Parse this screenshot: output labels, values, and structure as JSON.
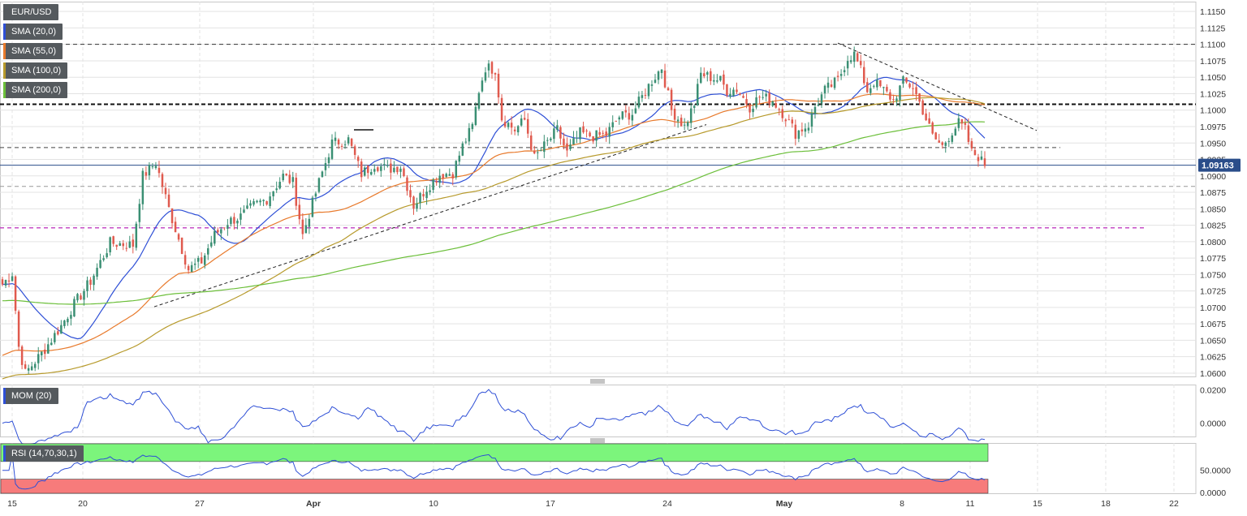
{
  "symbol": "EUR/USD",
  "last_price_label": "1.09163",
  "colors": {
    "bull": "#3a8f73",
    "bear": "#e05a4e",
    "sma20": "#2e4fd6",
    "sma55": "#e87a2c",
    "sma100": "#b79a2c",
    "sma200": "#6cbf3a",
    "mom": "#2e4fd6",
    "rsi": "#2e4fd6",
    "rsi_overbought": "#7cf57c",
    "rsi_oversold": "#f77b7b",
    "grid": "#e3e3e3",
    "support_line": "#c03ec0",
    "price_line": "#2a4d8a"
  },
  "indicators": [
    {
      "label": "SMA (20,0)",
      "color": "#2e4fd6"
    },
    {
      "label": "SMA (55,0)",
      "color": "#e87a2c"
    },
    {
      "label": "SMA (100,0)",
      "color": "#b79a2c"
    },
    {
      "label": "SMA (200,0)",
      "color": "#6cbf3a"
    }
  ],
  "mom_label": "MOM (20)",
  "rsi_label": "RSI (14,70,30,1)",
  "chart_data": [
    {
      "type": "candlestick",
      "title": "EUR/USD",
      "timeframe": "4h",
      "x_ticks": [
        "15",
        "20",
        "27",
        "Apr",
        "10",
        "17",
        "24",
        "May",
        "8",
        "11",
        "15",
        "18",
        "22"
      ],
      "y_ticks": [
        "1.1150",
        "1.1125",
        "1.1100",
        "1.1075",
        "1.1050",
        "1.1025",
        "1.1000",
        "1.0975",
        "1.0950",
        "1.0925",
        "1.0900",
        "1.0875",
        "1.0850",
        "1.0825",
        "1.0800",
        "1.0775",
        "1.0750",
        "1.0725",
        "1.0700",
        "1.0675",
        "1.0650",
        "1.0625",
        "1.0600"
      ],
      "ylim": [
        1.0595,
        1.1165
      ],
      "last_price": 1.09163,
      "horizontal_levels": [
        1.11,
        1.1009,
        1.0943,
        1.0884,
        1.0821
      ],
      "anchors": [
        [
          0,
          1.0735
        ],
        [
          3,
          1.0752
        ],
        [
          5,
          1.064
        ],
        [
          7,
          1.06
        ],
        [
          12,
          1.063
        ],
        [
          18,
          1.0672
        ],
        [
          22,
          1.0705
        ],
        [
          27,
          1.074
        ],
        [
          33,
          1.0798
        ],
        [
          40,
          1.0795
        ],
        [
          43,
          1.09
        ],
        [
          47,
          1.092
        ],
        [
          51,
          1.085
        ],
        [
          57,
          1.0758
        ],
        [
          61,
          1.077
        ],
        [
          65,
          1.081
        ],
        [
          69,
          1.083
        ],
        [
          73,
          1.0838
        ],
        [
          77,
          1.0855
        ],
        [
          81,
          1.0865
        ],
        [
          86,
          1.09
        ],
        [
          89,
          1.089
        ],
        [
          92,
          1.081
        ],
        [
          97,
          1.089
        ],
        [
          101,
          1.095
        ],
        [
          106,
          1.0955
        ],
        [
          110,
          1.0903
        ],
        [
          114,
          1.0918
        ],
        [
          118,
          1.091
        ],
        [
          122,
          1.0915
        ],
        [
          126,
          1.0855
        ],
        [
          130,
          1.0882
        ],
        [
          134,
          1.0902
        ],
        [
          138,
          1.0905
        ],
        [
          141,
          1.0945
        ],
        [
          144,
          1.0975
        ],
        [
          146,
          1.103
        ],
        [
          148,
          1.1065
        ],
        [
          151,
          1.1062
        ],
        [
          153,
          1.0988
        ],
        [
          157,
          1.097
        ],
        [
          160,
          1.0985
        ],
        [
          163,
          1.0927
        ],
        [
          166,
          1.0945
        ],
        [
          170,
          1.097
        ],
        [
          173,
          1.0935
        ],
        [
          177,
          1.0965
        ],
        [
          181,
          1.096
        ],
        [
          185,
          1.0963
        ],
        [
          189,
          1.099
        ],
        [
          193,
          1.0995
        ],
        [
          196,
          1.102
        ],
        [
          199,
          1.1045
        ],
        [
          202,
          1.1065
        ],
        [
          205,
          1.1
        ],
        [
          209,
          1.0975
        ],
        [
          212,
          1.101
        ],
        [
          214,
          1.1055
        ],
        [
          217,
          1.105
        ],
        [
          220,
          1.1045
        ],
        [
          222,
          1.103
        ],
        [
          225,
          1.1032
        ],
        [
          229,
          1.1005
        ],
        [
          232,
          1.102
        ],
        [
          236,
          1.1015
        ],
        [
          240,
          1.099
        ],
        [
          243,
          1.0965
        ],
        [
          247,
          1.0978
        ],
        [
          249,
          1.1005
        ],
        [
          252,
          1.103
        ],
        [
          256,
          1.1045
        ],
        [
          259,
          1.108
        ],
        [
          261,
          1.1085
        ],
        [
          263,
          1.106
        ],
        [
          265,
          1.103
        ],
        [
          267,
          1.1043
        ],
        [
          270,
          1.103
        ],
        [
          273,
          1.1015
        ],
        [
          276,
          1.1043
        ],
        [
          279,
          1.1035
        ],
        [
          282,
          1.1
        ],
        [
          285,
          1.096
        ],
        [
          288,
          1.0945
        ],
        [
          291,
          1.0968
        ],
        [
          293,
          1.098
        ],
        [
          295,
          1.097
        ],
        [
          297,
          1.0935
        ],
        [
          299,
          1.093
        ],
        [
          301,
          1.0915
        ]
      ],
      "candles_rendered": 302,
      "trendlines": [
        {
          "from_date": "Mar 23",
          "from": 1.0701,
          "to_date": "Apr 28",
          "to": 1.0978
        },
        {
          "from_date": "May 4",
          "from": 1.1102,
          "to_date": "May 14",
          "to": 1.0969
        }
      ],
      "series": [
        {
          "name": "SMA (20,0)",
          "period": 20
        },
        {
          "name": "SMA (55,0)",
          "period": 55
        },
        {
          "name": "SMA (100,0)",
          "period": 100
        },
        {
          "name": "SMA (200,0)",
          "period": 200
        }
      ]
    },
    {
      "type": "line",
      "title": "MOM (20)",
      "y_ticks": [
        "0.0200",
        "0.0000"
      ],
      "ylim": [
        -0.008,
        0.0232
      ]
    },
    {
      "type": "line",
      "title": "RSI (14,70,30,1)",
      "y_ticks": [
        "50.0000",
        "0.0000"
      ],
      "ylim": [
        -2,
        112
      ],
      "overbought": 70,
      "oversold": 30
    }
  ]
}
